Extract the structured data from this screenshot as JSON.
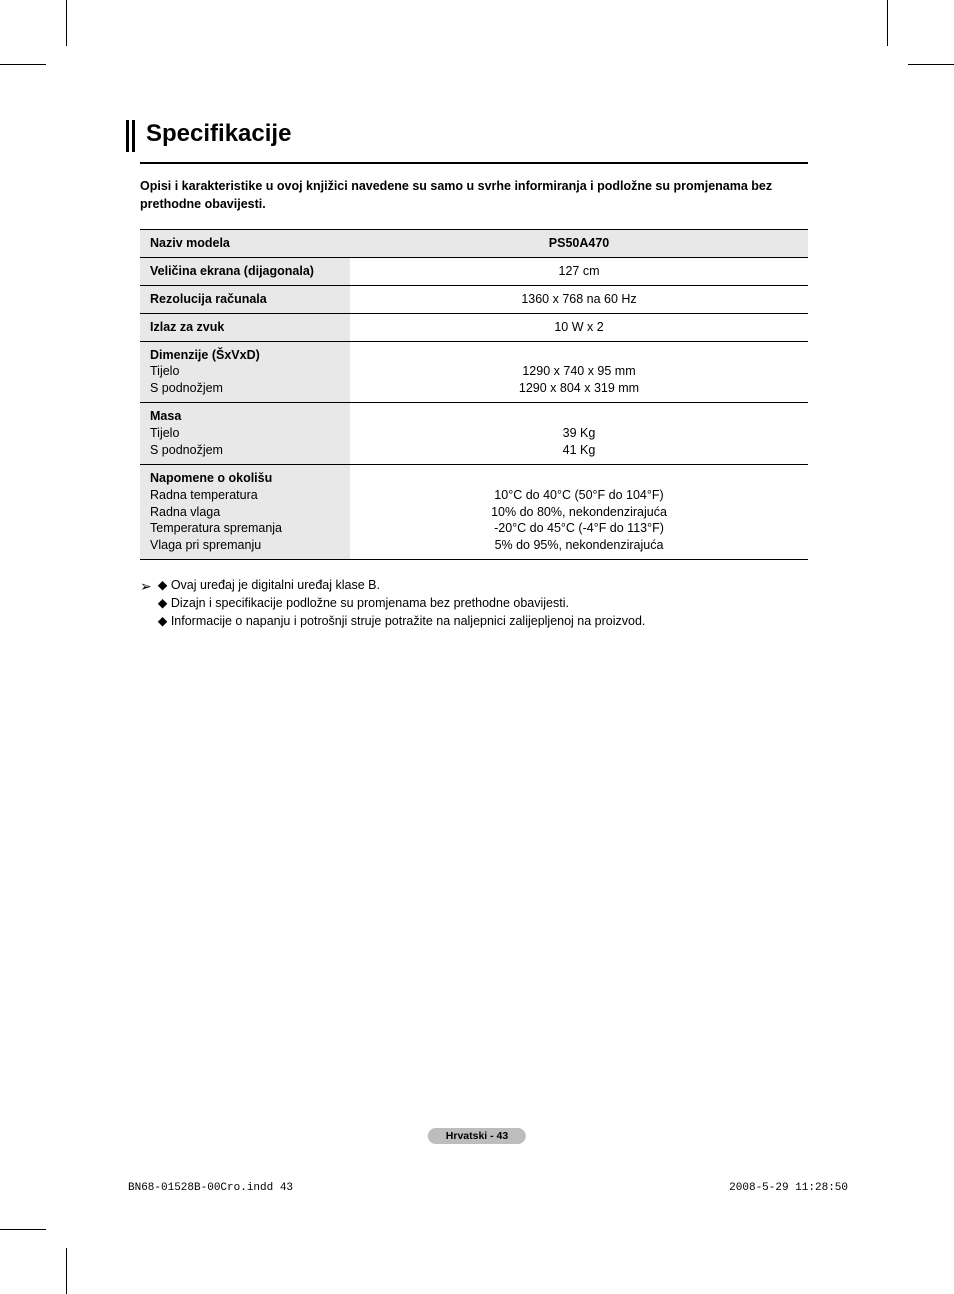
{
  "title": "Specifikacije",
  "intro": "Opisi i karakteristike u ovoj knjižici navedene su samo u svrhe informiranja i podložne su promjenama bez prethodne obavijesti.",
  "table": {
    "header_label": "Naziv modela",
    "header_value": "PS50A470",
    "rows": [
      {
        "label_bold": "Veličina ekrana (dijagonala)",
        "label_rest": "",
        "value": "127 cm"
      },
      {
        "label_bold": "Rezolucija računala",
        "label_rest": "",
        "value": "1360 x 768 na 60 Hz"
      },
      {
        "label_bold": "Izlaz za zvuk",
        "label_rest": "",
        "value": "10 W x 2"
      },
      {
        "label_bold": "Dimenzije (ŠxVxD)",
        "label_rest": "Tijelo\nS podnožjem",
        "value": "1290 x 740 x 95 mm\n1290 x 804 x 319 mm"
      },
      {
        "label_bold": "Masa",
        "label_rest": "Tijelo\nS podnožjem",
        "value": "39 Kg\n41 Kg"
      },
      {
        "label_bold": "Napomene o okolišu",
        "label_rest": "Radna temperatura\nRadna vlaga\nTemperatura spremanja\nVlaga pri spremanju",
        "value": "10°C do 40°C (50°F do 104°F)\n10% do 80%, nekondenzirajuća\n-20°C do 45°C (-4°F do 113°F)\n5% do 95%, nekondenzirajuća"
      }
    ]
  },
  "notes": [
    "Ovaj uređaj je digitalni uređaj klase B.",
    "Dizajn i specifikacije podložne su promjenama bez prethodne obavijesti.",
    "Informacije o napanju i potrošnji struje potražite na naljepnici zalijepljenoj na proizvod."
  ],
  "page_badge": "Hrvatski - 43",
  "footer_left": "BN68-01528B-00Cro.indd   43",
  "footer_right": "2008-5-29   11:28:50"
}
